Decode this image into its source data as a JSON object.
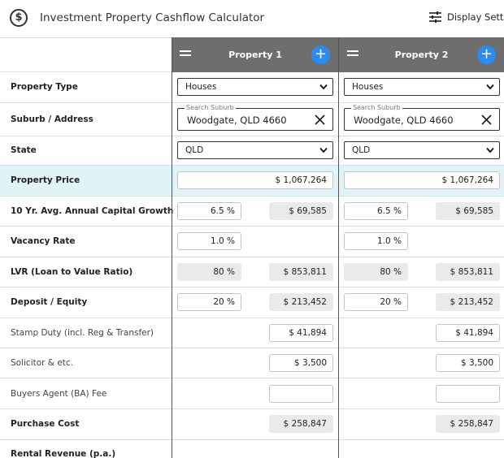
{
  "app": {
    "title": "Investment Property Cashflow Calculator",
    "logo_icon": "dollar-circle-icon",
    "settings_label": "Display Settings",
    "settings_icon": "sliders-icon"
  },
  "colors": {
    "header_bg": "#6e6e6e",
    "add_button": "#2a8bf2",
    "highlight_row": "#dff3f8",
    "readonly_field": "#e9eaeb"
  },
  "rows": {
    "property_type": "Property Type",
    "suburb": "Suburb / Address",
    "state": "State",
    "price": "Property Price",
    "growth": "10 Yr. Avg. Annual Capital Growth",
    "vacancy": "Vacancy Rate",
    "lvr": "LVR (Loan to Value Ratio)",
    "deposit": "Deposit / Equity",
    "stamp": "Stamp Duty (incl. Reg & Transfer)",
    "solicitor": "Solicitor & etc.",
    "buyers_agent": "Buyers Agent (BA) Fee",
    "purchase_cost": "Purchase Cost",
    "rental_revenue": "Rental Revenue (p.a.)"
  },
  "properties": [
    {
      "name": "Property 1",
      "property_type": "Houses",
      "suburb_legend": "Search Suburb",
      "suburb": "Woodgate, QLD 4660",
      "state": "QLD",
      "price": "$ 1,067,264",
      "growth_pct": "6.5 %",
      "growth_amt": "$ 69,585",
      "vacancy": "1.0 %",
      "lvr_pct": "80 %",
      "lvr_amt": "$ 853,811",
      "deposit_pct": "20 %",
      "deposit_amt": "$ 213,452",
      "stamp": "$ 41,894",
      "solicitor": "$ 3,500",
      "buyers_agent": "",
      "purchase_cost": "$ 258,847"
    },
    {
      "name": "Property 2",
      "property_type": "Houses",
      "suburb_legend": "Search Suburb",
      "suburb": "Woodgate, QLD 4660",
      "state": "QLD",
      "price": "$ 1,067,264",
      "growth_pct": "6.5 %",
      "growth_amt": "$ 69,585",
      "vacancy": "1.0 %",
      "lvr_pct": "80 %",
      "lvr_amt": "$ 853,811",
      "deposit_pct": "20 %",
      "deposit_amt": "$ 213,452",
      "stamp": "$ 41,894",
      "solicitor": "$ 3,500",
      "buyers_agent": "",
      "purchase_cost": "$ 258,847"
    }
  ]
}
